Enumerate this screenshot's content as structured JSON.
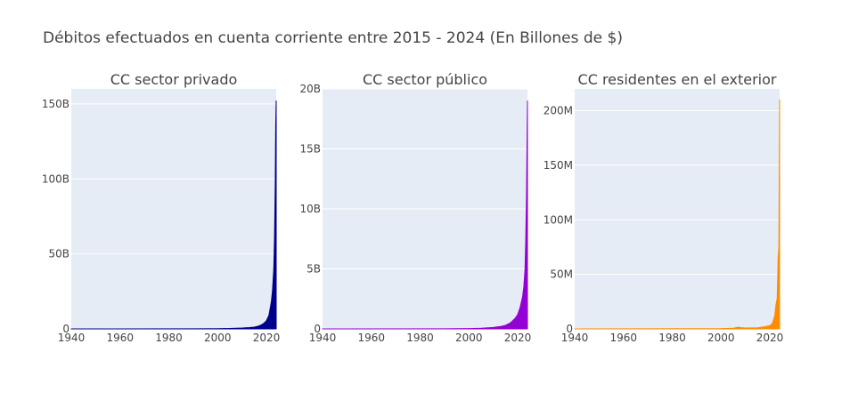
{
  "title": "Débitos efectuados en cuenta corriente entre 2015 - 2024 (En Billones de $)",
  "colors": {
    "plot_bg": "#E5ECF6",
    "grid": "#ffffff"
  },
  "chart_data": [
    {
      "type": "area",
      "title": "CC sector privado",
      "color": "#00008B",
      "xlim": [
        1940,
        2024
      ],
      "ylim": [
        0,
        160000000000
      ],
      "x_ticks": [
        1940,
        1960,
        1980,
        2000,
        2020
      ],
      "x_tick_labels": [
        "1940",
        "1960",
        "1980",
        "2000",
        "2020"
      ],
      "y_ticks": [
        0,
        50000000000,
        100000000000,
        150000000000
      ],
      "y_tick_labels": [
        "0",
        "50B",
        "100B",
        "150B"
      ],
      "x": [
        1940,
        1990,
        2000,
        2005,
        2010,
        2013,
        2015,
        2016,
        2017,
        2018,
        2019,
        2020,
        2021,
        2022,
        2022.5,
        2023,
        2023.3,
        2023.6,
        2023.8,
        2024
      ],
      "values": [
        0,
        50000000,
        150000000,
        300000000,
        600000000,
        900000000,
        1200000000,
        1600000000,
        2000000000,
        2800000000,
        3800000000,
        5500000000,
        9000000000,
        18000000000,
        26000000000,
        40000000000,
        60000000000,
        95000000000,
        135000000000,
        152000000000
      ]
    },
    {
      "type": "area",
      "title": "CC sector público",
      "color": "#9400D3",
      "xlim": [
        1940,
        2024
      ],
      "ylim": [
        0,
        20000000000
      ],
      "x_ticks": [
        1940,
        1960,
        1980,
        2000,
        2020
      ],
      "x_tick_labels": [
        "1940",
        "1960",
        "1980",
        "2000",
        "2020"
      ],
      "y_ticks": [
        0,
        5000000000,
        10000000000,
        15000000000,
        20000000000
      ],
      "y_tick_labels": [
        "0",
        "5B",
        "10B",
        "15B",
        "20B"
      ],
      "x": [
        1940,
        1990,
        2000,
        2005,
        2010,
        2013,
        2015,
        2016,
        2017,
        2018,
        2019,
        2020,
        2021,
        2022,
        2022.5,
        2023,
        2023.3,
        2023.6,
        2023.8,
        2024
      ],
      "values": [
        0,
        10000000,
        30000000,
        60000000,
        120000000,
        200000000,
        300000000,
        400000000,
        500000000,
        700000000,
        900000000,
        1200000000,
        1800000000,
        2700000000,
        3500000000,
        5000000000,
        7500000000,
        11000000000,
        15000000000,
        19000000000
      ]
    },
    {
      "type": "area",
      "title": "CC residentes en el exterior",
      "color": "#FF8C00",
      "xlim": [
        1940,
        2024
      ],
      "ylim": [
        0,
        220000000
      ],
      "x_ticks": [
        1940,
        1960,
        1980,
        2000,
        2020
      ],
      "x_tick_labels": [
        "1940",
        "1960",
        "1980",
        "2000",
        "2020"
      ],
      "y_ticks": [
        0,
        50000000,
        100000000,
        150000000,
        200000000
      ],
      "y_tick_labels": [
        "0",
        "50M",
        "100M",
        "150M",
        "200M"
      ],
      "x": [
        1940,
        2000,
        2005,
        2007,
        2008,
        2010,
        2015,
        2018,
        2020,
        2021,
        2022,
        2022.5,
        2023,
        2023.4,
        2023.7,
        2024
      ],
      "values": [
        0,
        300000,
        600000,
        1500000,
        1200000,
        800000,
        1000000,
        2000000,
        3000000,
        5000000,
        12000000,
        22000000,
        28000000,
        65000000,
        75000000,
        210000000
      ]
    }
  ]
}
